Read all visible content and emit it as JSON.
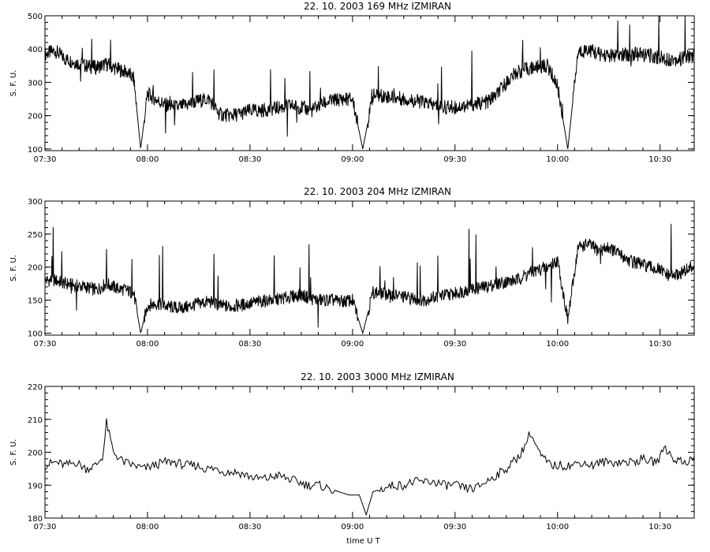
{
  "chart_data": [
    {
      "type": "line",
      "title": "22.  10.  2003    169 MHz    IZMIRAN",
      "ylabel": "S. F. U.",
      "xlabel": "",
      "xlim": [
        "07:30",
        "10:40"
      ],
      "ylim": [
        95,
        500
      ],
      "x_ticks": [
        "07:30",
        "08:00",
        "08:30",
        "09:00",
        "09:30",
        "10:00",
        "10:30"
      ],
      "y_ticks": [
        100,
        200,
        300,
        400,
        500
      ],
      "series": [
        {
          "name": "",
          "x": [
            "07:30",
            "07:33",
            "07:36",
            "07:39",
            "07:42",
            "07:45",
            "07:48",
            "07:51",
            "07:54",
            "07:56",
            "07:58",
            "08:00",
            "08:03",
            "08:06",
            "08:09",
            "08:12",
            "08:15",
            "08:18",
            "08:21",
            "08:24",
            "08:27",
            "08:30",
            "08:33",
            "08:36",
            "08:39",
            "08:42",
            "08:45",
            "08:48",
            "08:51",
            "08:54",
            "08:57",
            "09:00",
            "09:03",
            "09:06",
            "09:09",
            "09:12",
            "09:15",
            "09:18",
            "09:21",
            "09:24",
            "09:27",
            "09:30",
            "09:33",
            "09:36",
            "09:39",
            "09:42",
            "09:45",
            "09:48",
            "09:51",
            "09:54",
            "09:57",
            "10:00",
            "10:03",
            "10:06",
            "10:09",
            "10:12",
            "10:15",
            "10:18",
            "10:21",
            "10:24",
            "10:27",
            "10:30",
            "10:33",
            "10:36",
            "10:39"
          ],
          "values": [
            385,
            395,
            370,
            360,
            350,
            345,
            355,
            340,
            330,
            310,
            100,
            265,
            245,
            230,
            225,
            235,
            245,
            250,
            205,
            200,
            205,
            215,
            215,
            220,
            225,
            230,
            225,
            215,
            235,
            245,
            250,
            250,
            100,
            260,
            260,
            255,
            250,
            245,
            240,
            230,
            225,
            225,
            230,
            235,
            240,
            260,
            300,
            330,
            340,
            345,
            350,
            290,
            100,
            390,
            400,
            385,
            380,
            380,
            385,
            385,
            380,
            375,
            370,
            370,
            380
          ]
        }
      ]
    },
    {
      "type": "line",
      "title": "22.  10.  2003    204 MHz    IZMIRAN",
      "ylabel": "S. F. U.",
      "xlabel": "",
      "xlim": [
        "07:30",
        "10:40"
      ],
      "ylim": [
        97,
        300
      ],
      "x_ticks": [
        "07:30",
        "08:00",
        "08:30",
        "09:00",
        "09:30",
        "10:00",
        "10:30"
      ],
      "y_ticks": [
        100,
        150,
        200,
        250,
        300
      ],
      "series": [
        {
          "name": "",
          "x": [
            "07:30",
            "07:33",
            "07:36",
            "07:39",
            "07:42",
            "07:45",
            "07:48",
            "07:51",
            "07:54",
            "07:56",
            "07:58",
            "08:00",
            "08:03",
            "08:06",
            "08:09",
            "08:12",
            "08:15",
            "08:18",
            "08:21",
            "08:24",
            "08:27",
            "08:30",
            "08:33",
            "08:36",
            "08:39",
            "08:42",
            "08:45",
            "08:48",
            "08:51",
            "08:54",
            "08:57",
            "09:00",
            "09:03",
            "09:06",
            "09:09",
            "09:12",
            "09:15",
            "09:18",
            "09:21",
            "09:24",
            "09:27",
            "09:30",
            "09:33",
            "09:36",
            "09:39",
            "09:42",
            "09:45",
            "09:48",
            "09:51",
            "09:54",
            "09:57",
            "10:00",
            "10:03",
            "10:06",
            "10:09",
            "10:12",
            "10:15",
            "10:18",
            "10:21",
            "10:24",
            "10:27",
            "10:30",
            "10:33",
            "10:36",
            "10:39"
          ],
          "values": [
            180,
            180,
            175,
            172,
            170,
            165,
            175,
            168,
            165,
            160,
            100,
            142,
            145,
            140,
            138,
            140,
            145,
            148,
            142,
            140,
            142,
            145,
            148,
            150,
            152,
            155,
            158,
            152,
            150,
            150,
            148,
            150,
            100,
            162,
            160,
            158,
            155,
            152,
            150,
            155,
            158,
            160,
            165,
            168,
            170,
            175,
            178,
            180,
            190,
            195,
            200,
            210,
            120,
            230,
            235,
            225,
            230,
            220,
            210,
            205,
            200,
            195,
            185,
            190,
            200
          ]
        }
      ]
    },
    {
      "type": "line",
      "title": "22.  10.  2003    3000 MHz    IZMIRAN",
      "ylabel": "S. F. U.",
      "xlabel": "time  U T",
      "xlim": [
        "07:30",
        "10:40"
      ],
      "ylim": [
        180,
        220
      ],
      "x_ticks": [
        "07:30",
        "08:00",
        "08:30",
        "09:00",
        "09:30",
        "10:00",
        "10:30"
      ],
      "y_ticks": [
        180,
        190,
        200,
        210,
        220
      ],
      "series": [
        {
          "name": "",
          "x": [
            "07:30",
            "07:33",
            "07:36",
            "07:39",
            "07:42",
            "07:45",
            "07:47",
            "07:48",
            "07:50",
            "07:53",
            "07:56",
            "07:59",
            "08:02",
            "08:05",
            "08:08",
            "08:11",
            "08:14",
            "08:17",
            "08:20",
            "08:23",
            "08:26",
            "08:29",
            "08:32",
            "08:35",
            "08:38",
            "08:41",
            "08:44",
            "08:47",
            "08:50",
            "08:53",
            "08:56",
            "08:59",
            "09:02",
            "09:04",
            "09:06",
            "09:09",
            "09:12",
            "09:15",
            "09:18",
            "09:21",
            "09:24",
            "09:27",
            "09:30",
            "09:33",
            "09:36",
            "09:39",
            "09:42",
            "09:45",
            "09:48",
            "09:50",
            "09:52",
            "09:55",
            "09:58",
            "10:01",
            "10:04",
            "10:07",
            "10:10",
            "10:13",
            "10:16",
            "10:19",
            "10:22",
            "10:25",
            "10:28",
            "10:30",
            "10:31",
            "10:34",
            "10:37",
            "10:40"
          ],
          "values": [
            196,
            197,
            196,
            197,
            195,
            196,
            199,
            209,
            200,
            197,
            196,
            195,
            196,
            197,
            197,
            196,
            196,
            195,
            195,
            194,
            194,
            193,
            192,
            192,
            193,
            192,
            191,
            190,
            190,
            189,
            188,
            187,
            187,
            181,
            188,
            189,
            190,
            190,
            191,
            191,
            191,
            190,
            190,
            189,
            189,
            191,
            193,
            195,
            198,
            201,
            206,
            199,
            196,
            196,
            196,
            197,
            196,
            197,
            197,
            197,
            197,
            198,
            197,
            198,
            202,
            198,
            197,
            198
          ]
        }
      ]
    }
  ]
}
